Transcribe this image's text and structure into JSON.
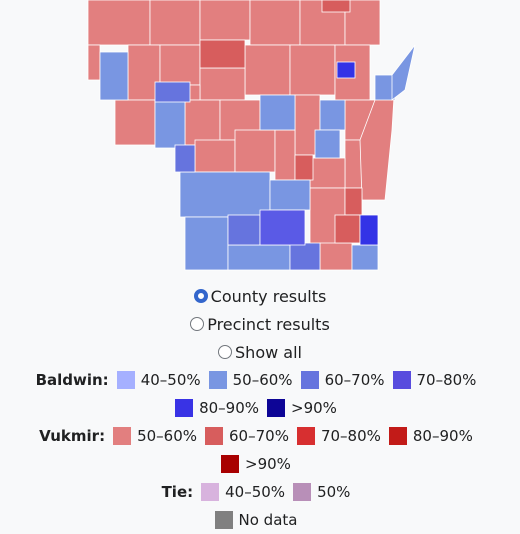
{
  "radio_options": [
    {
      "label": "County results",
      "selected": true
    },
    {
      "label": "Precinct results",
      "selected": false
    },
    {
      "label": "Show all",
      "selected": false
    }
  ],
  "legend": [
    {
      "name": "Baldwin:",
      "items": [
        {
          "label": "40–50%",
          "color": "#a5b0ff"
        },
        {
          "label": "50–60%",
          "color": "#7996e2"
        },
        {
          "label": "60–70%",
          "color": "#6674de"
        },
        {
          "label": "70–80%",
          "color": "#584cde"
        },
        {
          "label": "80–90%",
          "color": "#3933e5"
        },
        {
          "label": ">90%",
          "color": "#0d0596"
        }
      ]
    },
    {
      "name": "Vukmir:",
      "items": [
        {
          "label": "50–60%",
          "color": "#e27f7f"
        },
        {
          "label": "60–70%",
          "color": "#d75d5d"
        },
        {
          "label": "70–80%",
          "color": "#d72f30"
        },
        {
          "label": "80–90%",
          "color": "#c21b18"
        },
        {
          "label": ">90%",
          "color": "#a80000"
        }
      ]
    },
    {
      "name": "Tie:",
      "items": [
        {
          "label": "40–50%",
          "color": "#d8b3de"
        },
        {
          "label": "50%",
          "color": "#b88fb8"
        }
      ]
    },
    {
      "name": null,
      "items": [
        {
          "label": "No data",
          "color": "#808080"
        }
      ]
    }
  ]
}
